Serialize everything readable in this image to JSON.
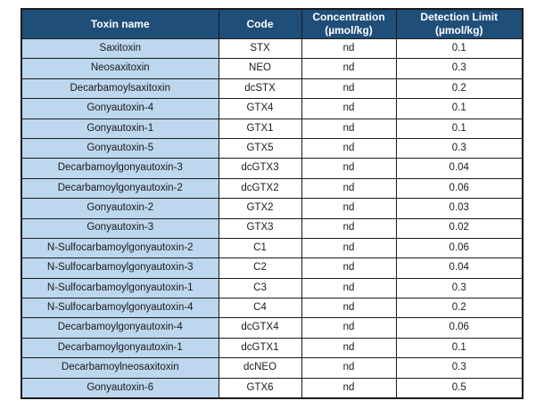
{
  "table": {
    "headers": [
      "Toxin name",
      "Code",
      "Concentration\n(µmol/kg)",
      "Detection Limit\n(µmol/kg)"
    ],
    "rows": [
      [
        "Saxitoxin",
        "STX",
        "nd",
        "0.1"
      ],
      [
        "Neosaxitoxin",
        "NEO",
        "nd",
        "0.3"
      ],
      [
        "Decarbamoylsaxitoxin",
        "dcSTX",
        "nd",
        "0.2"
      ],
      [
        "Gonyautoxin-4",
        "GTX4",
        "nd",
        "0.1"
      ],
      [
        "Gonyautoxin-1",
        "GTX1",
        "nd",
        "0.1"
      ],
      [
        "Gonyautoxin-5",
        "GTX5",
        "nd",
        "0.3"
      ],
      [
        "Decarbamoylgonyautoxin-3",
        "dcGTX3",
        "nd",
        "0.04"
      ],
      [
        "Decarbamoylgonyautoxin-2",
        "dcGTX2",
        "nd",
        "0.06"
      ],
      [
        "Gonyautoxin-2",
        "GTX2",
        "nd",
        "0.03"
      ],
      [
        "Gonyautoxin-3",
        "GTX3",
        "nd",
        "0.02"
      ],
      [
        "N-Sulfocarbamoylgonyautoxin-2",
        "C1",
        "nd",
        "0.06"
      ],
      [
        "N-Sulfocarbamoylgonyautoxin-3",
        "C2",
        "nd",
        "0.04"
      ],
      [
        "N-Sulfocarbamoylgonyautoxin-1",
        "C3",
        "nd",
        "0.3"
      ],
      [
        "N-Sulfocarbamoylgonyautoxin-4",
        "C4",
        "nd",
        "0.2"
      ],
      [
        "Decarbamoylgonyautoxin-4",
        "dcGTX4",
        "nd",
        "0.06"
      ],
      [
        "Decarbamoylgonyautoxin-1",
        "dcGTX1",
        "nd",
        "0.1"
      ],
      [
        "Decarbamoylneosaxitoxin",
        "dcNEO",
        "nd",
        "0.3"
      ],
      [
        "Gonyautoxin-6",
        "GTX6",
        "nd",
        "0.5"
      ]
    ]
  },
  "colors": {
    "header_bg": "#1F4E79",
    "header_text": "#FFFFFF",
    "toxin_col_bg": "#BDD7EE",
    "body_bg": "#FFFFFF",
    "border": "#1A1A1A",
    "body_text": "#1A1A1A"
  },
  "chart_data": {
    "type": "table",
    "columns": [
      "Toxin name",
      "Code",
      "Concentration (µmol/kg)",
      "Detection Limit (µmol/kg)"
    ],
    "rows": [
      [
        "Saxitoxin",
        "STX",
        "nd",
        0.1
      ],
      [
        "Neosaxitoxin",
        "NEO",
        "nd",
        0.3
      ],
      [
        "Decarbamoylsaxitoxin",
        "dcSTX",
        "nd",
        0.2
      ],
      [
        "Gonyautoxin-4",
        "GTX4",
        "nd",
        0.1
      ],
      [
        "Gonyautoxin-1",
        "GTX1",
        "nd",
        0.1
      ],
      [
        "Gonyautoxin-5",
        "GTX5",
        "nd",
        0.3
      ],
      [
        "Decarbamoylgonyautoxin-3",
        "dcGTX3",
        "nd",
        0.04
      ],
      [
        "Decarbamoylgonyautoxin-2",
        "dcGTX2",
        "nd",
        0.06
      ],
      [
        "Gonyautoxin-2",
        "GTX2",
        "nd",
        0.03
      ],
      [
        "Gonyautoxin-3",
        "GTX3",
        "nd",
        0.02
      ],
      [
        "N-Sulfocarbamoylgonyautoxin-2",
        "C1",
        "nd",
        0.06
      ],
      [
        "N-Sulfocarbamoylgonyautoxin-3",
        "C2",
        "nd",
        0.04
      ],
      [
        "N-Sulfocarbamoylgonyautoxin-1",
        "C3",
        "nd",
        0.3
      ],
      [
        "N-Sulfocarbamoylgonyautoxin-4",
        "C4",
        "nd",
        0.2
      ],
      [
        "Decarbamoylgonyautoxin-4",
        "dcGTX4",
        "nd",
        0.06
      ],
      [
        "Decarbamoylgonyautoxin-1",
        "dcGTX1",
        "nd",
        0.1
      ],
      [
        "Decarbamoylneosaxitoxin",
        "dcNEO",
        "nd",
        0.3
      ],
      [
        "Gonyautoxin-6",
        "GTX6",
        "nd",
        0.5
      ]
    ]
  }
}
